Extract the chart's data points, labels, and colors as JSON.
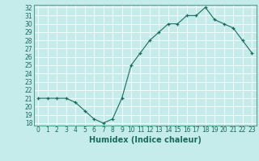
{
  "x": [
    0,
    1,
    2,
    3,
    4,
    5,
    6,
    7,
    8,
    9,
    10,
    11,
    12,
    13,
    14,
    15,
    16,
    17,
    18,
    19,
    20,
    21,
    22,
    23
  ],
  "y": [
    21,
    21,
    21,
    21,
    20.5,
    19.5,
    18.5,
    18,
    18.5,
    21,
    25,
    26.5,
    28,
    29,
    30,
    30,
    31,
    31,
    32,
    30.5,
    30,
    29.5,
    28,
    26.5
  ],
  "line_color": "#1a6b5e",
  "marker": "+",
  "marker_size": 3,
  "bg_color": "#c5ecea",
  "grid_color": "#ffffff",
  "xlabel": "Humidex (Indice chaleur)",
  "ylim_min": 18,
  "ylim_max": 32,
  "xlim_min": -0.5,
  "xlim_max": 23.5,
  "yticks": [
    18,
    19,
    20,
    21,
    22,
    23,
    24,
    25,
    26,
    27,
    28,
    29,
    30,
    31,
    32
  ],
  "xticks": [
    0,
    1,
    2,
    3,
    4,
    5,
    6,
    7,
    8,
    9,
    10,
    11,
    12,
    13,
    14,
    15,
    16,
    17,
    18,
    19,
    20,
    21,
    22,
    23
  ],
  "tick_color": "#1a6b5e",
  "axis_color": "#5a9e90",
  "tick_fontsize": 5.5,
  "xlabel_fontsize": 7
}
